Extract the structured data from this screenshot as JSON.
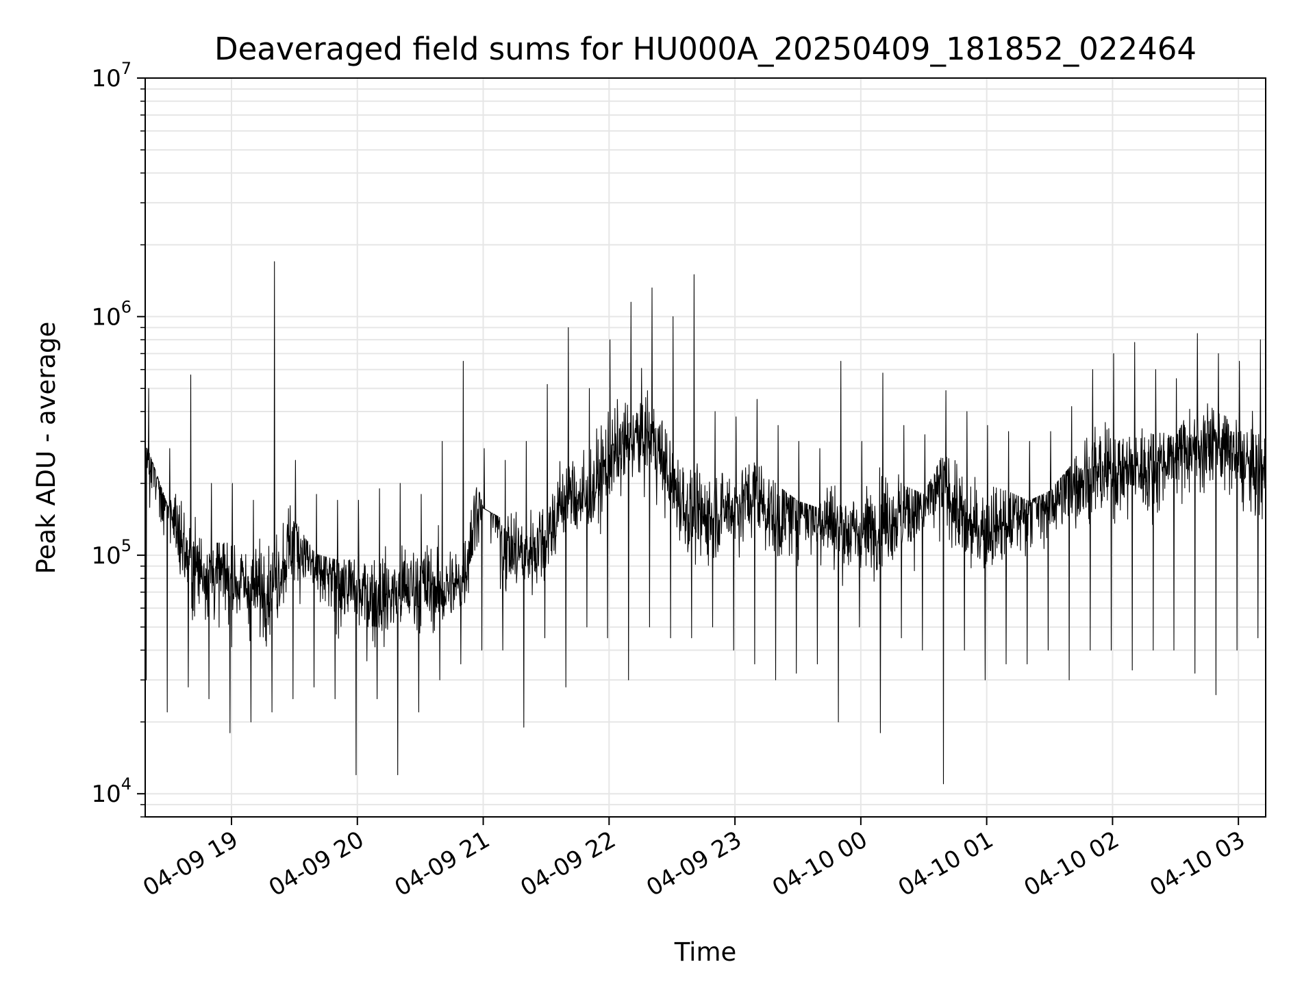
{
  "chart_data": {
    "type": "line",
    "title": "Deaveraged field sums for HU000A_20250409_181852_022464",
    "xlabel": "Time",
    "ylabel": "Peak ADU - average",
    "yscale": "log",
    "xlim": [
      "2025-04-09 18:18:52",
      "2025-04-10 03:13:00"
    ],
    "ylim": [
      8000,
      10000000
    ],
    "grid": true,
    "line_color": "#000000",
    "x_ticks": [
      {
        "t": "2025-04-09 19:00",
        "label": "04-09 19"
      },
      {
        "t": "2025-04-09 20:00",
        "label": "04-09 20"
      },
      {
        "t": "2025-04-09 21:00",
        "label": "04-09 21"
      },
      {
        "t": "2025-04-09 22:00",
        "label": "04-09 22"
      },
      {
        "t": "2025-04-09 23:00",
        "label": "04-09 23"
      },
      {
        "t": "2025-04-10 00:00",
        "label": "04-10 00"
      },
      {
        "t": "2025-04-10 01:00",
        "label": "04-10 01"
      },
      {
        "t": "2025-04-10 02:00",
        "label": "04-10 02"
      },
      {
        "t": "2025-04-10 03:00",
        "label": "04-10 03"
      }
    ],
    "y_ticks": [
      {
        "value": 10000,
        "base": "10",
        "exp": "4"
      },
      {
        "value": 100000,
        "base": "10",
        "exp": "5"
      },
      {
        "value": 1000000,
        "base": "10",
        "exp": "6"
      },
      {
        "value": 10000000,
        "base": "10",
        "exp": "7"
      }
    ],
    "series": [
      {
        "x": [
          "2025-04-09 18:20",
          "2025-04-09 18:30",
          "2025-04-09 18:40",
          "2025-04-09 18:50",
          "2025-04-09 19:00",
          "2025-04-09 19:10",
          "2025-04-09 19:20",
          "2025-04-09 19:30",
          "2025-04-09 19:40",
          "2025-04-09 19:50",
          "2025-04-09 20:00",
          "2025-04-09 20:10",
          "2025-04-09 20:20",
          "2025-04-09 20:30",
          "2025-04-09 20:40",
          "2025-04-09 20:50",
          "2025-04-09 21:00",
          "2025-04-09 21:10",
          "2025-04-09 21:20",
          "2025-04-09 21:30",
          "2025-04-09 21:40",
          "2025-04-09 21:50",
          "2025-04-09 22:00",
          "2025-04-09 22:10",
          "2025-04-09 22:20",
          "2025-04-09 22:30",
          "2025-04-09 22:40",
          "2025-04-09 22:50",
          "2025-04-09 23:00",
          "2025-04-09 23:10",
          "2025-04-09 23:20",
          "2025-04-09 23:30",
          "2025-04-09 23:40",
          "2025-04-09 23:50",
          "2025-04-10 00:00",
          "2025-04-10 00:10",
          "2025-04-10 00:20",
          "2025-04-10 00:30",
          "2025-04-10 00:40",
          "2025-04-10 00:50",
          "2025-04-10 01:00",
          "2025-04-10 01:10",
          "2025-04-10 01:20",
          "2025-04-10 01:30",
          "2025-04-10 01:40",
          "2025-04-10 01:50",
          "2025-04-10 02:00",
          "2025-04-10 02:10",
          "2025-04-10 02:20",
          "2025-04-10 02:30",
          "2025-04-10 02:40",
          "2025-04-10 02:50",
          "2025-04-10 03:00",
          "2025-04-10 03:10"
        ],
        "values": [
          260000,
          170000,
          90000,
          85000,
          80000,
          70000,
          75000,
          120000,
          85000,
          80000,
          70000,
          65000,
          70000,
          75000,
          70000,
          75000,
          220000,
          110000,
          100000,
          120000,
          180000,
          170000,
          250000,
          300000,
          320000,
          200000,
          140000,
          150000,
          160000,
          180000,
          140000,
          160000,
          150000,
          130000,
          120000,
          140000,
          150000,
          160000,
          200000,
          130000,
          130000,
          140000,
          160000,
          170000,
          200000,
          220000,
          220000,
          230000,
          230000,
          280000,
          280000,
          300000,
          250000,
          220000
        ],
        "min_values": [
          30000,
          22000,
          28000,
          25000,
          18000,
          20000,
          22000,
          25000,
          28000,
          25000,
          12000,
          25000,
          12000,
          22000,
          30000,
          35000,
          40000,
          40000,
          19000,
          45000,
          28000,
          50000,
          45000,
          30000,
          50000,
          45000,
          45000,
          50000,
          40000,
          35000,
          30000,
          32000,
          35000,
          20000,
          50000,
          18000,
          45000,
          40000,
          11000,
          40000,
          30000,
          35000,
          35000,
          40000,
          30000,
          40000,
          40000,
          33000,
          40000,
          40000,
          32000,
          26000,
          40000,
          45000
        ],
        "max_values": [
          500000,
          280000,
          570000,
          200000,
          200000,
          170000,
          1700000,
          250000,
          180000,
          170000,
          170000,
          190000,
          200000,
          180000,
          300000,
          650000,
          280000,
          250000,
          300000,
          520000,
          900000,
          500000,
          800000,
          1150000,
          1320000,
          1000000,
          1500000,
          400000,
          380000,
          450000,
          350000,
          300000,
          280000,
          650000,
          300000,
          580000,
          350000,
          320000,
          490000,
          400000,
          350000,
          330000,
          300000,
          330000,
          420000,
          600000,
          700000,
          780000,
          600000,
          550000,
          850000,
          700000,
          650000,
          800000
        ]
      }
    ]
  }
}
